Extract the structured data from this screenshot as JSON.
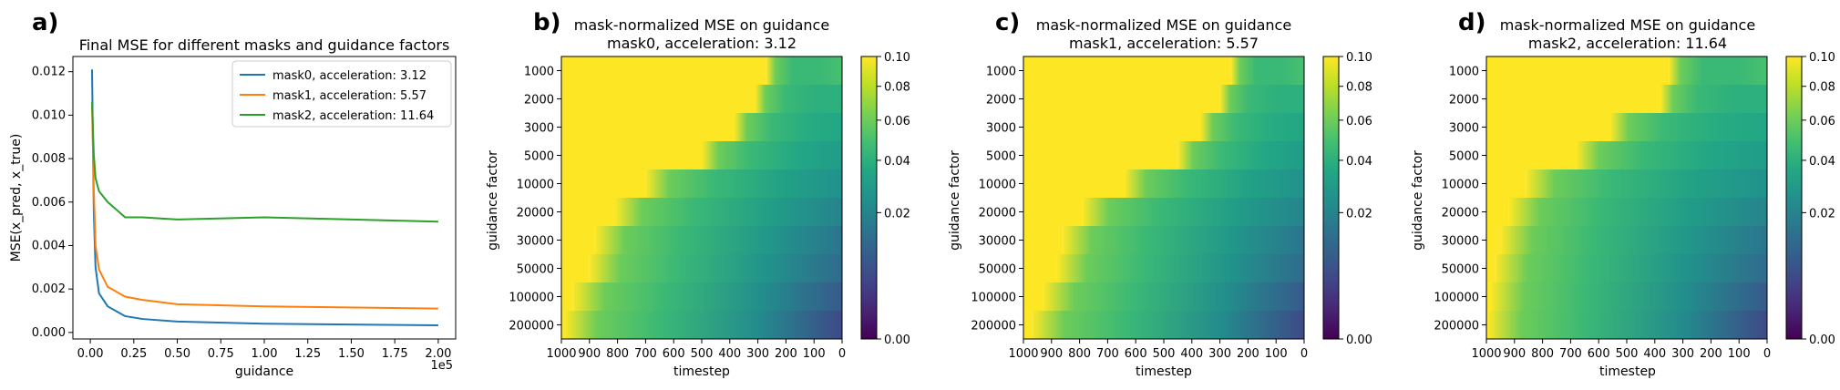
{
  "chart_data": [
    {
      "panel_label": "a)",
      "type": "line",
      "title": "Final MSE for different masks and guidance factors",
      "xlabel": "guidance",
      "ylabel": "MSE(x_pred, x_true)",
      "x_offset_label": "1e5",
      "xlim": [
        -0.1,
        2.1
      ],
      "ylim": [
        -0.0003,
        0.0127
      ],
      "xticks": [
        0,
        0.25,
        0.5,
        0.75,
        1.0,
        1.25,
        1.5,
        1.75,
        2.0
      ],
      "xtick_labels": [
        "0.00",
        "0.25",
        "0.50",
        "0.75",
        "1.00",
        "1.25",
        "1.50",
        "1.75",
        "2.00"
      ],
      "yticks": [
        0,
        0.002,
        0.004,
        0.006,
        0.008,
        0.01,
        0.012
      ],
      "ytick_labels": [
        "0.000",
        "0.002",
        "0.004",
        "0.006",
        "0.008",
        "0.010",
        "0.012"
      ],
      "legend_position": "top-right",
      "x": [
        0.01,
        0.02,
        0.03,
        0.05,
        0.1,
        0.2,
        0.3,
        0.5,
        1.0,
        2.0
      ],
      "series": [
        {
          "name": "mask0, acceleration: 3.12",
          "color": "#1f77b4",
          "values": [
            0.0121,
            0.0055,
            0.003,
            0.0018,
            0.0012,
            0.00075,
            0.00062,
            0.0005,
            0.0004,
            0.00033
          ]
        },
        {
          "name": "mask1, acceleration: 5.57",
          "color": "#ff7f0e",
          "values": [
            0.0104,
            0.0066,
            0.004,
            0.0029,
            0.0021,
            0.00165,
            0.0015,
            0.0013,
            0.0012,
            0.0011
          ]
        },
        {
          "name": "mask2, acceleration: 11.64",
          "color": "#2ca02c",
          "values": [
            0.0106,
            0.0082,
            0.0071,
            0.0065,
            0.006,
            0.0053,
            0.0053,
            0.0052,
            0.0053,
            0.0051
          ]
        }
      ]
    },
    {
      "panel_label": "b)",
      "type": "heatmap",
      "title_line1": "mask-normalized MSE on guidance",
      "title_line2": "mask0, acceleration: 3.12",
      "xlabel": "timestep",
      "ylabel": "guidance factor",
      "x_tick_labels": [
        "1000",
        "900",
        "800",
        "700",
        "600",
        "500",
        "400",
        "300",
        "200",
        "100",
        "0"
      ],
      "y_categories": [
        "1000",
        "2000",
        "3000",
        "5000",
        "10000",
        "20000",
        "30000",
        "50000",
        "100000",
        "200000"
      ],
      "yellow_boundary_timestep": [
        270,
        310,
        385,
        500,
        700,
        810,
        880,
        900,
        960,
        990
      ],
      "end_value_at_timestep_0": [
        0.05,
        0.04,
        0.035,
        0.03,
        0.025,
        0.02,
        0.015,
        0.012,
        0.008,
        0.005
      ],
      "colorbar_ticks": [
        0.0,
        0.02,
        0.04,
        0.06,
        0.08,
        0.1
      ],
      "colorbar_tick_labels": [
        "0.00",
        "0.02",
        "0.04",
        "0.06",
        "0.08",
        "0.10"
      ],
      "colorbar_range": [
        0.0,
        0.1
      ],
      "colormap": "viridis"
    },
    {
      "panel_label": "c)",
      "type": "heatmap",
      "title_line1": "mask-normalized MSE on guidance",
      "title_line2": "mask1, acceleration: 5.57",
      "xlabel": "timestep",
      "ylabel": "guidance factor",
      "x_tick_labels": [
        "1000",
        "900",
        "800",
        "700",
        "600",
        "500",
        "400",
        "300",
        "200",
        "100",
        "0"
      ],
      "y_categories": [
        "1000",
        "2000",
        "3000",
        "5000",
        "10000",
        "20000",
        "30000",
        "50000",
        "100000",
        "200000"
      ],
      "yellow_boundary_timestep": [
        260,
        300,
        370,
        450,
        640,
        790,
        860,
        880,
        930,
        970
      ],
      "end_value_at_timestep_0": [
        0.05,
        0.04,
        0.035,
        0.03,
        0.025,
        0.02,
        0.015,
        0.012,
        0.008,
        0.005
      ],
      "colorbar_ticks": [
        0.0,
        0.02,
        0.04,
        0.06,
        0.08,
        0.1
      ],
      "colorbar_tick_labels": [
        "0.00",
        "0.02",
        "0.04",
        "0.06",
        "0.08",
        "0.10"
      ],
      "colorbar_range": [
        0.0,
        0.1
      ],
      "colormap": "viridis"
    },
    {
      "panel_label": "d)",
      "type": "heatmap",
      "title_line1": "mask-normalized MSE on guidance",
      "title_line2": "mask2, acceleration: 11.64",
      "xlabel": "timestep",
      "ylabel": "guidance factor",
      "x_tick_labels": [
        "1000",
        "900",
        "800",
        "700",
        "600",
        "500",
        "400",
        "300",
        "200",
        "100",
        "0"
      ],
      "y_categories": [
        "1000",
        "2000",
        "3000",
        "5000",
        "10000",
        "20000",
        "30000",
        "50000",
        "100000",
        "200000"
      ],
      "yellow_boundary_timestep": [
        350,
        380,
        560,
        680,
        860,
        920,
        950,
        970,
        985,
        995
      ],
      "end_value_at_timestep_0": [
        0.05,
        0.04,
        0.035,
        0.03,
        0.025,
        0.02,
        0.015,
        0.012,
        0.008,
        0.005
      ],
      "colorbar_ticks": [
        0.0,
        0.02,
        0.04,
        0.06,
        0.08,
        0.1
      ],
      "colorbar_tick_labels": [
        "0.00",
        "0.02",
        "0.04",
        "0.06",
        "0.08",
        "0.10"
      ],
      "colorbar_range": [
        0.0,
        0.1
      ],
      "colormap": "viridis"
    }
  ]
}
